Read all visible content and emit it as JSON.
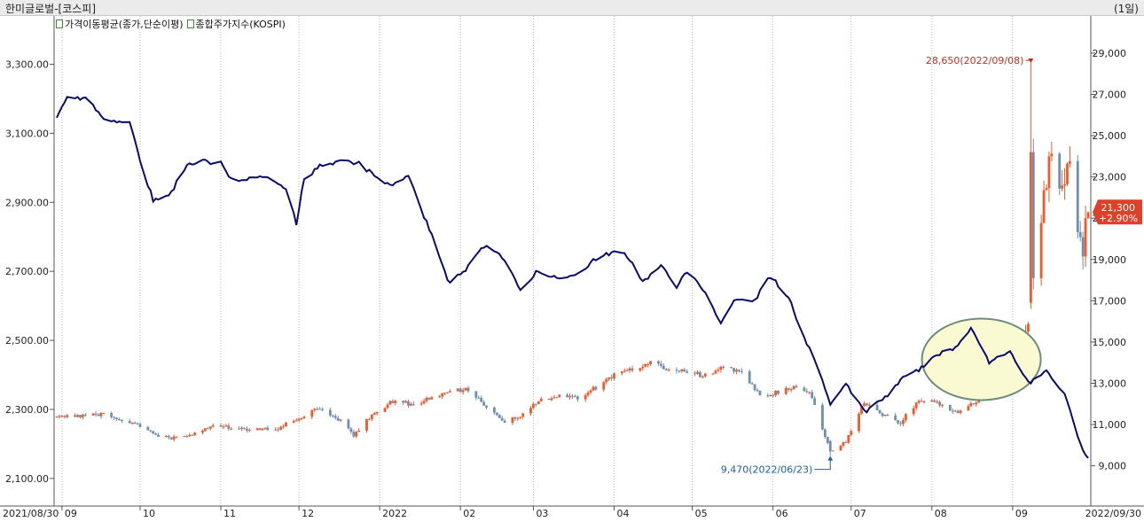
{
  "window": {
    "title": "한미글로벌-[코스피]",
    "period": "(1일)"
  },
  "legend": [
    {
      "label": "가격이동평균(종가,단순이평)"
    },
    {
      "label": "종합주가지수(KOSPI)"
    }
  ],
  "colors": {
    "up": "#ef5a2a",
    "down": "#6f8fb0",
    "index_line": "#0b0b6e",
    "ellipse_fill": "#fafad2",
    "ellipse_stroke": "#6e8c7a",
    "high_label": "#c0301c",
    "low_label": "#1b5fa8",
    "last_badge": "#e0402a"
  },
  "chart_data": {
    "type": "candlestick+line",
    "x_start_label": "2021/08/30",
    "x_end_label": "2022/09/30",
    "x_tick_labels": [
      "09",
      "10",
      "11",
      "12",
      "2022",
      "02",
      "03",
      "04",
      "05",
      "06",
      "07",
      "08",
      "09"
    ],
    "left_axis": {
      "series": "종합주가지수(KOSPI)",
      "ylim": [
        2020,
        3440
      ],
      "tick_labels": [
        "3,300.00",
        "3,100.00",
        "2,900.00",
        "2,700.00",
        "2,500.00",
        "2,300.00",
        "2,100.00"
      ]
    },
    "right_axis": {
      "series": "한미글로벌",
      "ylim": [
        7050,
        30800
      ],
      "tick_labels": [
        "29,000",
        "27,000",
        "25,000",
        "23,000",
        "21,000",
        "19,000",
        "17,000",
        "15,000",
        "13,000",
        "11,000",
        "9,000"
      ]
    },
    "kospi_line": [
      [
        "2021/08/30",
        3144
      ],
      [
        "2021/09/03",
        3201
      ],
      [
        "2021/09/10",
        3203
      ],
      [
        "2021/09/17",
        3140
      ],
      [
        "2021/09/27",
        3133
      ],
      [
        "2021/10/01",
        3020
      ],
      [
        "2021/10/06",
        2908
      ],
      [
        "2021/10/12",
        2916
      ],
      [
        "2021/10/19",
        3013
      ],
      [
        "2021/10/25",
        3020
      ],
      [
        "2021/11/01",
        3013
      ],
      [
        "2021/11/05",
        2969
      ],
      [
        "2021/11/12",
        2968
      ],
      [
        "2021/11/19",
        2971
      ],
      [
        "2021/11/26",
        2936
      ],
      [
        "2021/11/30",
        2839
      ],
      [
        "2021/12/03",
        2968
      ],
      [
        "2021/12/10",
        3010
      ],
      [
        "2021/12/17",
        3017
      ],
      [
        "2021/12/24",
        3012
      ],
      [
        "2021/12/30",
        2978
      ],
      [
        "2022/01/05",
        2953
      ],
      [
        "2022/01/12",
        2972
      ],
      [
        "2022/01/19",
        2842
      ],
      [
        "2022/01/25",
        2720
      ],
      [
        "2022/01/28",
        2663
      ],
      [
        "2022/02/03",
        2707
      ],
      [
        "2022/02/10",
        2771
      ],
      [
        "2022/02/17",
        2744
      ],
      [
        "2022/02/24",
        2648
      ],
      [
        "2022/03/03",
        2703
      ],
      [
        "2022/03/10",
        2680
      ],
      [
        "2022/03/17",
        2694
      ],
      [
        "2022/03/24",
        2729
      ],
      [
        "2022/03/31",
        2757
      ],
      [
        "2022/04/05",
        2759
      ],
      [
        "2022/04/12",
        2666
      ],
      [
        "2022/04/19",
        2718
      ],
      [
        "2022/04/25",
        2657
      ],
      [
        "2022/04/29",
        2695
      ],
      [
        "2022/05/06",
        2644
      ],
      [
        "2022/05/12",
        2550
      ],
      [
        "2022/05/18",
        2625
      ],
      [
        "2022/05/25",
        2617
      ],
      [
        "2022/05/31",
        2685
      ],
      [
        "2022/06/07",
        2626
      ],
      [
        "2022/06/13",
        2504
      ],
      [
        "2022/06/17",
        2441
      ],
      [
        "2022/06/23",
        2314
      ],
      [
        "2022/06/29",
        2377
      ],
      [
        "2022/07/06",
        2292
      ],
      [
        "2022/07/13",
        2328
      ],
      [
        "2022/07/20",
        2386
      ],
      [
        "2022/07/27",
        2415
      ],
      [
        "2022/08/03",
        2461
      ],
      [
        "2022/08/10",
        2480
      ],
      [
        "2022/08/16",
        2533
      ],
      [
        "2022/08/23",
        2435
      ],
      [
        "2022/08/31",
        2472
      ],
      [
        "2022/09/07",
        2376
      ],
      [
        "2022/09/14",
        2411
      ],
      [
        "2022/09/21",
        2347
      ],
      [
        "2022/09/26",
        2220
      ],
      [
        "2022/09/30",
        2155
      ]
    ],
    "stock_path": [
      [
        "2021/08/30",
        11400
      ],
      [
        "2021/09/17",
        11500
      ],
      [
        "2021/09/30",
        11000
      ],
      [
        "2021/10/08",
        10350
      ],
      [
        "2021/10/20",
        10400
      ],
      [
        "2021/10/29",
        10950
      ],
      [
        "2021/11/10",
        10800
      ],
      [
        "2021/11/22",
        10750
      ],
      [
        "2021/11/30",
        11250
      ],
      [
        "2021/12/08",
        11850
      ],
      [
        "2021/12/15",
        11400
      ],
      [
        "2021/12/22",
        10500
      ],
      [
        "2021/12/30",
        11600
      ],
      [
        "2022/01/07",
        12200
      ],
      [
        "2022/01/14",
        11950
      ],
      [
        "2022/01/21",
        12300
      ],
      [
        "2022/01/28",
        12600
      ],
      [
        "2022/02/04",
        12700
      ],
      [
        "2022/02/11",
        11850
      ],
      [
        "2022/02/18",
        11100
      ],
      [
        "2022/02/25",
        11500
      ],
      [
        "2022/03/04",
        12200
      ],
      [
        "2022/03/11",
        12400
      ],
      [
        "2022/03/18",
        12300
      ],
      [
        "2022/03/25",
        12800
      ],
      [
        "2022/03/31",
        13350
      ],
      [
        "2022/04/08",
        13700
      ],
      [
        "2022/04/15",
        13950
      ],
      [
        "2022/04/22",
        13700
      ],
      [
        "2022/04/29",
        13550
      ],
      [
        "2022/05/06",
        13350
      ],
      [
        "2022/05/13",
        13800
      ],
      [
        "2022/05/20",
        13600
      ],
      [
        "2022/05/27",
        12400
      ],
      [
        "2022/06/03",
        12550
      ],
      [
        "2022/06/10",
        12850
      ],
      [
        "2022/06/15",
        12550
      ],
      [
        "2022/06/20",
        10850
      ],
      [
        "2022/06/23",
        9600
      ],
      [
        "2022/06/29",
        10200
      ],
      [
        "2022/07/06",
        12100
      ],
      [
        "2022/07/13",
        11500
      ],
      [
        "2022/07/20",
        11100
      ],
      [
        "2022/07/27",
        12200
      ],
      [
        "2022/08/04",
        12000
      ],
      [
        "2022/08/11",
        11600
      ],
      [
        "2022/08/18",
        12100
      ],
      [
        "2022/08/24",
        13100
      ],
      [
        "2022/08/31",
        12900
      ],
      [
        "2022/09/05",
        14900
      ],
      [
        "2022/09/08",
        17000
      ],
      [
        "2022/09/13",
        22500
      ],
      [
        "2022/09/16",
        24000
      ],
      [
        "2022/09/20",
        22000
      ],
      [
        "2022/09/23",
        23800
      ],
      [
        "2022/09/26",
        20300
      ],
      [
        "2022/09/28",
        19600
      ],
      [
        "2022/09/30",
        21300
      ]
    ],
    "stock_high": {
      "value": 28650,
      "date": "2022/09/08",
      "label": "28,650(2022/09/08)"
    },
    "stock_low": {
      "value": 9470,
      "date": "2022/06/23",
      "label": "9,470(2022/06/23)"
    },
    "last_price": {
      "value": "21,300",
      "change": "+2.90%"
    },
    "grid": "vertical-dotted",
    "annotation": "ellipse over 2022/08 – 2022/09"
  }
}
